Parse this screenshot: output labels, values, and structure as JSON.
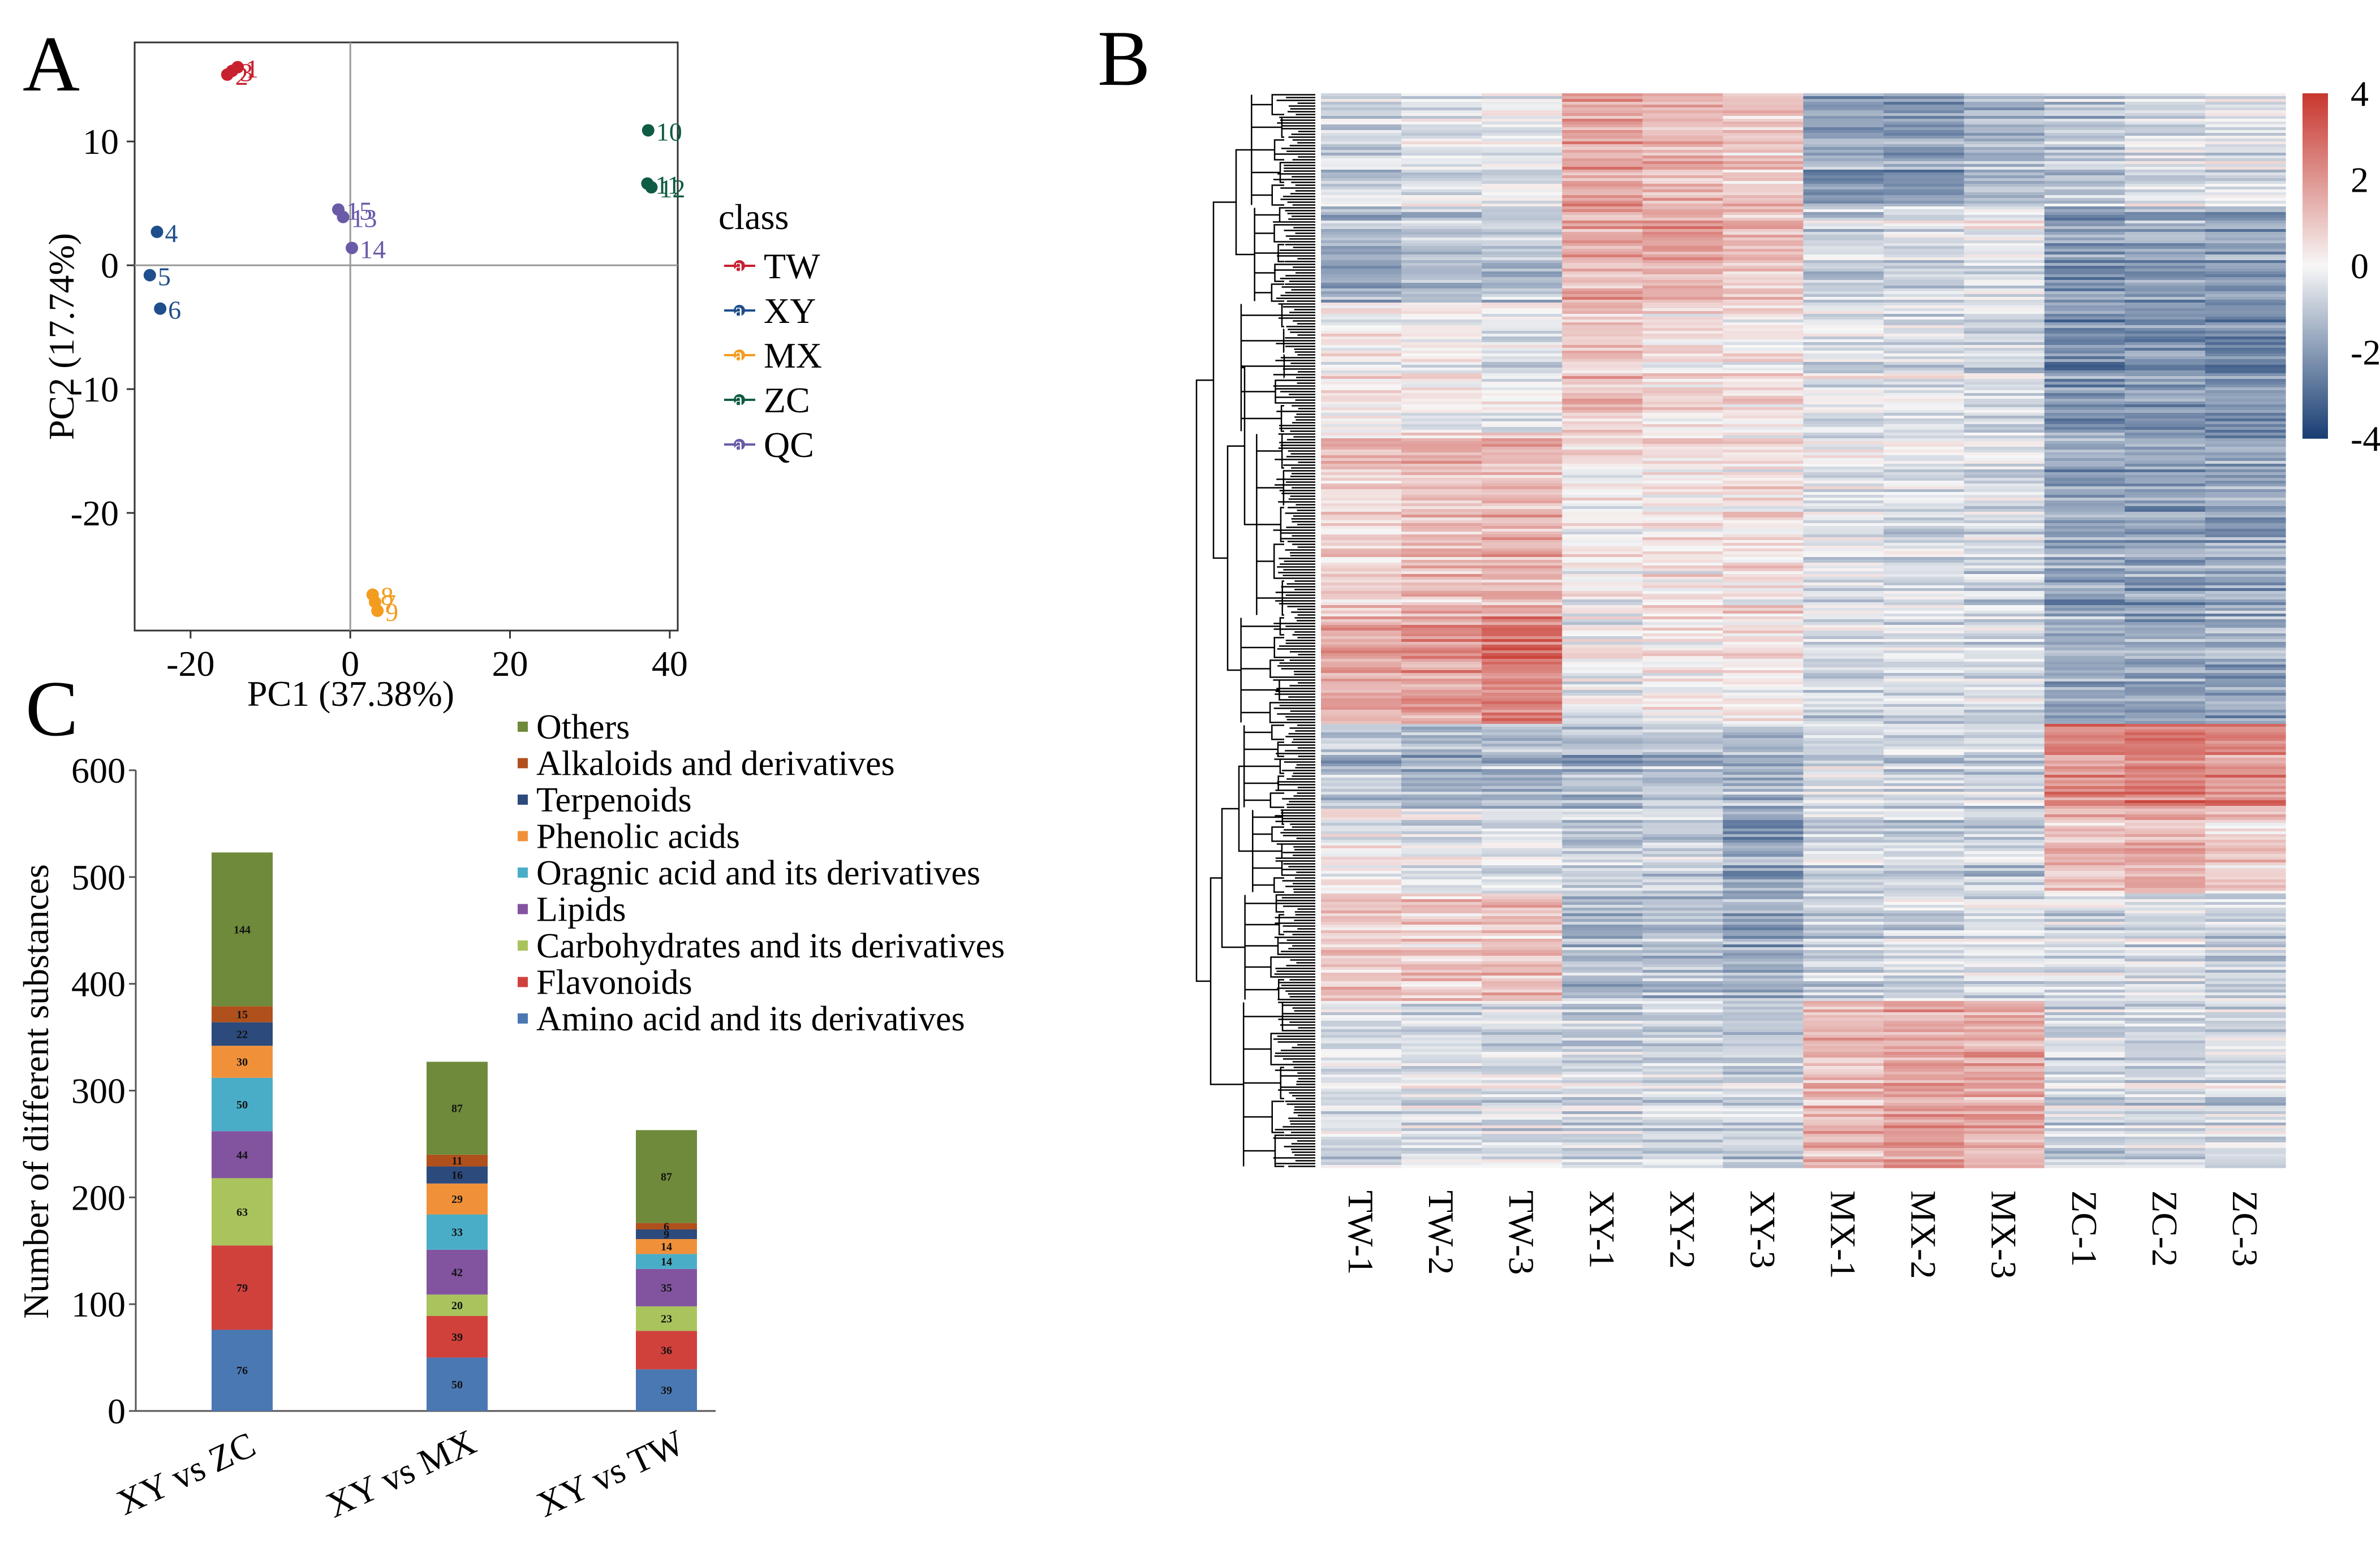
{
  "chart_data": [
    {
      "panel": "A",
      "type": "scatter",
      "title": "",
      "xlabel": "PC1 (37.38%)",
      "ylabel": "PC2 (17.74%)",
      "xlim": [
        -27,
        41
      ],
      "ylim": [
        -29.5,
        18
      ],
      "xticks": [
        -20,
        0,
        20,
        40
      ],
      "yticks": [
        10,
        0,
        -10,
        -20
      ],
      "tick_labels_x": [
        "-20",
        "0",
        "20",
        "40"
      ],
      "tick_labels_y": [
        "10",
        "0",
        "-10",
        "-20"
      ],
      "legend_title": "class",
      "legend_marker_letter": "a",
      "series": [
        {
          "name": "TW",
          "color": "#c8202f",
          "points": [
            {
              "x": -14.8,
              "y": 15.7,
              "label": "3"
            },
            {
              "x": -15.4,
              "y": 15.4,
              "label": "2"
            },
            {
              "x": -14.1,
              "y": 16.0,
              "label": "1"
            }
          ]
        },
        {
          "name": "XY",
          "color": "#1f4e8c",
          "points": [
            {
              "x": -24.2,
              "y": 2.7,
              "label": "4"
            },
            {
              "x": -25.1,
              "y": -0.8,
              "label": "5"
            },
            {
              "x": -23.8,
              "y": -3.5,
              "label": "6"
            }
          ]
        },
        {
          "name": "MX",
          "color": "#f39c1f",
          "points": [
            {
              "x": 2.8,
              "y": -26.6,
              "label": "8"
            },
            {
              "x": 3.1,
              "y": -27.2,
              "label": "7"
            },
            {
              "x": 3.4,
              "y": -27.9,
              "label": "9"
            }
          ]
        },
        {
          "name": "ZC",
          "color": "#0f5c45",
          "points": [
            {
              "x": 37.3,
              "y": 10.9,
              "label": "10"
            },
            {
              "x": 37.2,
              "y": 6.6,
              "label": "11"
            },
            {
              "x": 37.7,
              "y": 6.3,
              "label": "12"
            }
          ]
        },
        {
          "name": "QC",
          "color": "#6b5aa8",
          "points": [
            {
              "x": -1.5,
              "y": 4.5,
              "label": "15"
            },
            {
              "x": -0.9,
              "y": 3.9,
              "label": "13"
            },
            {
              "x": 0.2,
              "y": 1.4,
              "label": "14"
            }
          ]
        }
      ]
    },
    {
      "panel": "B",
      "type": "heatmap",
      "columns": [
        "TW-1",
        "TW-2",
        "TW-3",
        "XY-1",
        "XY-2",
        "XY-3",
        "MX-1",
        "MX-2",
        "MX-3",
        "ZC-1",
        "ZC-2",
        "ZC-3"
      ],
      "colorbar_range": [
        -4,
        4
      ],
      "colorbar_ticks": [
        "4",
        "2",
        "0",
        "-2",
        "-4"
      ],
      "colors": {
        "low": "#1a3f74",
        "mid": "#f7f7f7",
        "high": "#c8382f"
      },
      "row_clusters": [
        {
          "share": 0.105,
          "values": [
            -0.7,
            -0.5,
            -0.3,
            1.7,
            1.3,
            1.0,
            -1.9,
            -2.0,
            -1.4,
            -1.1,
            -0.5,
            -0.4
          ]
        },
        {
          "share": 0.09,
          "values": [
            -1.5,
            -1.3,
            -1.1,
            1.5,
            1.8,
            1.1,
            -0.9,
            -0.6,
            -0.3,
            -2.0,
            -1.8,
            -1.9
          ]
        },
        {
          "share": 0.12,
          "values": [
            0.3,
            0.1,
            -0.2,
            1.1,
            0.6,
            0.4,
            -0.3,
            -0.4,
            -0.6,
            -2.2,
            -2.1,
            -2.2
          ]
        },
        {
          "share": 0.17,
          "values": [
            0.8,
            1.1,
            1.3,
            0.2,
            0.3,
            0.4,
            -0.3,
            -0.5,
            -0.6,
            -1.8,
            -1.9,
            -1.8
          ]
        },
        {
          "share": 0.1,
          "values": [
            1.6,
            2.0,
            2.6,
            -0.2,
            0.1,
            0.3,
            -0.6,
            -0.7,
            -0.5,
            -1.7,
            -1.8,
            -1.7
          ]
        },
        {
          "share": 0.08,
          "values": [
            -1.3,
            -1.4,
            -1.3,
            -1.5,
            -1.2,
            -1.4,
            -0.6,
            -0.9,
            -0.8,
            2.2,
            2.5,
            2.2
          ]
        },
        {
          "share": 0.08,
          "values": [
            0.1,
            -0.4,
            -0.5,
            -1.0,
            -0.9,
            -1.8,
            -0.8,
            -0.7,
            -0.9,
            1.2,
            1.6,
            0.8
          ]
        },
        {
          "share": 0.1,
          "values": [
            1.0,
            0.9,
            1.1,
            -1.4,
            -1.3,
            -1.6,
            -0.9,
            -0.7,
            -0.6,
            -0.6,
            -0.5,
            -0.8
          ]
        },
        {
          "share": 0.155,
          "values": [
            -0.5,
            -0.4,
            -0.5,
            -0.7,
            -0.6,
            -0.8,
            1.4,
            1.9,
            1.7,
            -0.7,
            -0.6,
            -0.6
          ]
        }
      ]
    },
    {
      "panel": "C",
      "type": "bar",
      "stacked": true,
      "ylabel": "Number of different substances",
      "ylim": [
        0,
        600
      ],
      "yticks": [
        0,
        100,
        200,
        300,
        400,
        500,
        600
      ],
      "tick_labels_y": [
        "0",
        "100",
        "200",
        "300",
        "400",
        "500",
        "600"
      ],
      "categories": [
        "XY vs ZC",
        "XY vs MX",
        "XY vs TW"
      ],
      "series": [
        {
          "name": "Amino acid and its derivatives",
          "color": "#4a78b3",
          "values": [
            76,
            50,
            39
          ],
          "labels": [
            "76",
            "50",
            "39"
          ]
        },
        {
          "name": "Flavonoids",
          "color": "#d0413c",
          "values": [
            79,
            39,
            36
          ],
          "labels": [
            "79",
            "39",
            "36"
          ]
        },
        {
          "name": "Carbohydrates and its derivatives",
          "color": "#a9c45c",
          "values": [
            63,
            20,
            23
          ],
          "labels": [
            "63",
            "20",
            "23"
          ]
        },
        {
          "name": "Lipids",
          "color": "#8254a0",
          "values": [
            44,
            42,
            35
          ],
          "labels": [
            "44",
            "42",
            "35"
          ]
        },
        {
          "name": "Oragnic acid and its derivatives",
          "color": "#4aadc8",
          "values": [
            50,
            33,
            14
          ],
          "labels": [
            "50",
            "33",
            "14"
          ]
        },
        {
          "name": "Phenolic acids",
          "color": "#f0913a",
          "values": [
            30,
            29,
            14
          ],
          "labels": [
            "30",
            "29",
            "14"
          ]
        },
        {
          "name": "Terpenoids",
          "color": "#2c4a7c",
          "values": [
            22,
            16,
            9
          ],
          "labels": [
            "22",
            "16",
            "9"
          ]
        },
        {
          "name": "Alkaloids and derivatives",
          "color": "#b0501c",
          "values": [
            15,
            11,
            6
          ],
          "labels": [
            "15",
            "11",
            "6"
          ]
        },
        {
          "name": "Others",
          "color": "#6e8a3a",
          "values": [
            144,
            87,
            87
          ],
          "labels": [
            "144",
            "87",
            "87"
          ]
        }
      ],
      "legend_order": [
        "Others",
        "Alkaloids and derivatives",
        "Terpenoids",
        "Phenolic acids",
        "Oragnic acid and its derivatives",
        "Lipids",
        "Carbohydrates and its derivatives",
        "Flavonoids",
        "Amino acid and its derivatives"
      ]
    }
  ],
  "panel_letters": {
    "a": "A",
    "b": "B",
    "c": "C"
  }
}
